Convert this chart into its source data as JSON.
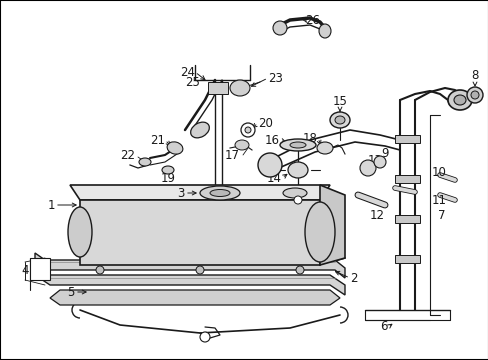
{
  "bg": "#ffffff",
  "lc": "#1a1a1a",
  "fig_w": 4.89,
  "fig_h": 3.6,
  "dpi": 100,
  "border": "#000000"
}
